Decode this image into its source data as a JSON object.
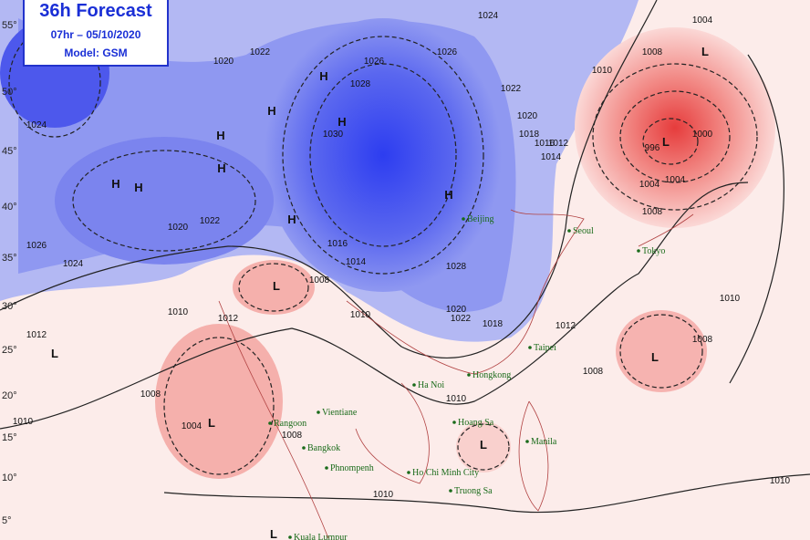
{
  "header": {
    "title": "36h Forecast",
    "time": "07hr – 05/10/2020",
    "model": "Model: GSM"
  },
  "latitudes": [
    "55°",
    "50°",
    "45°",
    "40°",
    "35°",
    "30°",
    "25°",
    "20°",
    "15°",
    "10°",
    "5°"
  ],
  "cities": [
    "Beijing",
    "Seoul",
    "Tokyo",
    "Taipei",
    "Hongkong",
    "Ha Noi",
    "Vientiane",
    "Rangoon",
    "Hoang Sa",
    "Bangkok",
    "Manila",
    "Phnompenh",
    "Ho Chi Minh City",
    "Truong Sa",
    "Kuala Lumpur"
  ],
  "centers": [
    "H",
    "H",
    "H",
    "H",
    "H",
    "H",
    "H",
    "H",
    "H",
    "L",
    "L",
    "L",
    "L",
    "L",
    "L",
    "L",
    "L"
  ],
  "isobar_labels": [
    "1024",
    "1020",
    "1022",
    "1026",
    "1028",
    "1026",
    "1024",
    "1022",
    "1020",
    "1018",
    "1016",
    "1014",
    "1012",
    "1010",
    "1008",
    "1004",
    "1000",
    "996",
    "1004",
    "1008",
    "1012",
    "1010",
    "1008",
    "1010",
    "1008",
    "1004",
    "1008",
    "1010",
    "1010",
    "1012",
    "1008",
    "1026",
    "1024",
    "1022",
    "1020",
    "1018",
    "1016",
    "1014",
    "1012",
    "1010",
    "1028",
    "1030",
    "1020",
    "1022",
    "1008",
    "1010",
    "1004",
    "1010"
  ]
}
